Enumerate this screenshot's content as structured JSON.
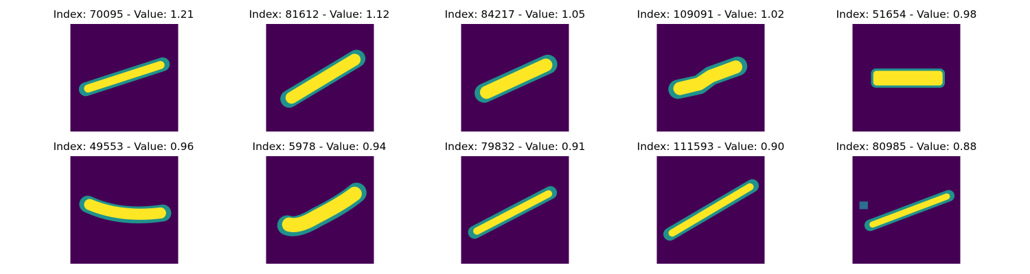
{
  "colors": {
    "background": "#440154",
    "mid": "#21918c",
    "high": "#fde725"
  },
  "panels": [
    {
      "title": "Index: 70095 - Value: 1.21",
      "stroke_icon": "thin-diagonal-stroke"
    },
    {
      "title": "Index: 81612 - Value: 1.12",
      "stroke_icon": "thick-diagonal-stroke"
    },
    {
      "title": "Index: 84217 - Value: 1.05",
      "stroke_icon": "thick-diagonal-stroke"
    },
    {
      "title": "Index: 109091 - Value: 1.02",
      "stroke_icon": "bent-diagonal-stroke"
    },
    {
      "title": "Index: 51654 - Value: 0.98",
      "stroke_icon": "horizontal-bar-stroke"
    },
    {
      "title": "Index: 49553 - Value: 0.96",
      "stroke_icon": "horizontal-curved-stroke"
    },
    {
      "title": "Index: 5978 - Value: 0.94",
      "stroke_icon": "thick-diagonal-stroke"
    },
    {
      "title": "Index: 79832 - Value: 0.91",
      "stroke_icon": "thin-diagonal-stroke"
    },
    {
      "title": "Index: 111593 - Value: 0.90",
      "stroke_icon": "long-diagonal-stroke"
    },
    {
      "title": "Index: 80985 - Value: 0.88",
      "stroke_icon": "thin-diagonal-stroke-with-dot"
    }
  ]
}
